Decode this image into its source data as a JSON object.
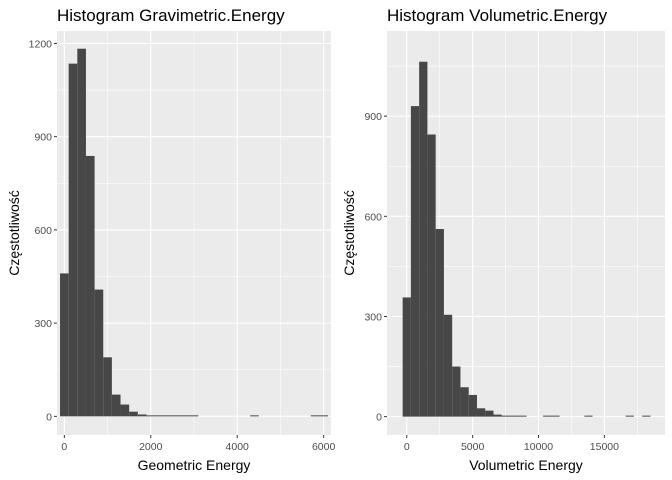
{
  "chart_data": [
    {
      "type": "bar",
      "title": "Histogram Gravimetric.Energy",
      "xlabel": "Geometric Energy",
      "ylabel": "Częstotliwość",
      "xlim": [
        -170,
        6170
      ],
      "ylim": [
        -60,
        1240
      ],
      "x_ticks": [
        0,
        2000,
        4000,
        6000
      ],
      "y_ticks": [
        0,
        300,
        600,
        900,
        1200
      ],
      "grid": true,
      "bin_width": 200,
      "bins": [
        {
          "x0": -100,
          "x1": 100,
          "count": 460
        },
        {
          "x0": 100,
          "x1": 300,
          "count": 1135
        },
        {
          "x0": 300,
          "x1": 500,
          "count": 1183
        },
        {
          "x0": 500,
          "x1": 700,
          "count": 838
        },
        {
          "x0": 700,
          "x1": 900,
          "count": 408
        },
        {
          "x0": 900,
          "x1": 1100,
          "count": 190
        },
        {
          "x0": 1100,
          "x1": 1300,
          "count": 70
        },
        {
          "x0": 1300,
          "x1": 1500,
          "count": 38
        },
        {
          "x0": 1500,
          "x1": 1700,
          "count": 15
        },
        {
          "x0": 1700,
          "x1": 1900,
          "count": 6
        },
        {
          "x0": 1900,
          "x1": 2100,
          "count": 3
        },
        {
          "x0": 2100,
          "x1": 2300,
          "count": 2
        },
        {
          "x0": 2300,
          "x1": 2500,
          "count": 1
        },
        {
          "x0": 2500,
          "x1": 2700,
          "count": 2
        },
        {
          "x0": 2700,
          "x1": 2900,
          "count": 1
        },
        {
          "x0": 2900,
          "x1": 3100,
          "count": 2
        },
        {
          "x0": 4300,
          "x1": 4500,
          "count": 2
        },
        {
          "x0": 5700,
          "x1": 5900,
          "count": 1
        },
        {
          "x0": 5900,
          "x1": 6100,
          "count": 1
        }
      ]
    },
    {
      "type": "bar",
      "title": "Histogram Volumetric.Energy",
      "xlabel": "Volumetric Energy",
      "ylabel": "Częstotliwość",
      "xlim": [
        -1500,
        19600
      ],
      "ylim": [
        -55,
        1155
      ],
      "x_ticks": [
        0,
        5000,
        10000,
        15000
      ],
      "y_ticks": [
        0,
        300,
        600,
        900
      ],
      "grid": true,
      "bin_width": 627,
      "bins": [
        {
          "x0": -313,
          "x1": 313,
          "count": 357
        },
        {
          "x0": 313,
          "x1": 940,
          "count": 930
        },
        {
          "x0": 940,
          "x1": 1567,
          "count": 1063
        },
        {
          "x0": 1567,
          "x1": 2194,
          "count": 845
        },
        {
          "x0": 2194,
          "x1": 2821,
          "count": 562
        },
        {
          "x0": 2821,
          "x1": 3448,
          "count": 305
        },
        {
          "x0": 3448,
          "x1": 4075,
          "count": 150
        },
        {
          "x0": 4075,
          "x1": 4702,
          "count": 88
        },
        {
          "x0": 4702,
          "x1": 5329,
          "count": 65
        },
        {
          "x0": 5329,
          "x1": 5956,
          "count": 25
        },
        {
          "x0": 5956,
          "x1": 6583,
          "count": 18
        },
        {
          "x0": 6583,
          "x1": 7210,
          "count": 6
        },
        {
          "x0": 7210,
          "x1": 7837,
          "count": 3
        },
        {
          "x0": 7837,
          "x1": 8464,
          "count": 3
        },
        {
          "x0": 8464,
          "x1": 9091,
          "count": 2
        },
        {
          "x0": 10345,
          "x1": 10972,
          "count": 2
        },
        {
          "x0": 10972,
          "x1": 11599,
          "count": 2
        },
        {
          "x0": 13480,
          "x1": 14107,
          "count": 1
        },
        {
          "x0": 16615,
          "x1": 17242,
          "count": 1
        },
        {
          "x0": 17869,
          "x1": 18496,
          "count": 1
        }
      ]
    }
  ]
}
